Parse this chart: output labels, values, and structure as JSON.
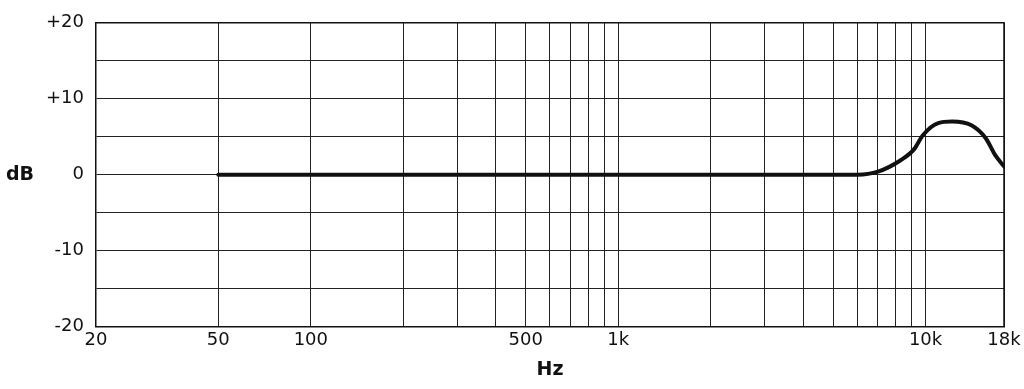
{
  "chart_data": {
    "type": "line",
    "xlabel": "Hz",
    "ylabel": "dB",
    "log": "x",
    "grid": true,
    "legend": false,
    "marker": "none",
    "line_style": "solid",
    "xlim": [
      20,
      18000
    ],
    "ylim": [
      -20,
      20
    ],
    "xticks": [
      20,
      50,
      100,
      {
        "value": 200,
        "label": null
      },
      {
        "value": 300,
        "label": null
      },
      {
        "value": 400,
        "label": null
      },
      500,
      {
        "value": 600,
        "label": null
      },
      {
        "value": 700,
        "label": null
      },
      {
        "value": 800,
        "label": null
      },
      {
        "value": 900,
        "label": null
      },
      {
        "value": 1000,
        "label": "1k"
      },
      {
        "value": 2000,
        "label": null
      },
      {
        "value": 3000,
        "label": null
      },
      {
        "value": 4000,
        "label": null
      },
      {
        "value": 5000,
        "label": null
      },
      {
        "value": 6000,
        "label": null
      },
      {
        "value": 7000,
        "label": null
      },
      {
        "value": 8000,
        "label": null
      },
      {
        "value": 9000,
        "label": null
      },
      {
        "value": 10000,
        "label": "10k"
      },
      {
        "value": 18000,
        "label": "18k"
      }
    ],
    "yticks": [
      {
        "value": -20,
        "label": "-20"
      },
      {
        "value": -15,
        "label": null
      },
      {
        "value": -10,
        "label": "-10"
      },
      {
        "value": -5,
        "label": null
      },
      0,
      {
        "value": 5,
        "label": null
      },
      {
        "value": 10,
        "label": "+10"
      },
      {
        "value": 15,
        "label": null
      },
      {
        "value": 20,
        "label": "+20"
      }
    ],
    "series": [
      {
        "color": "#111111",
        "x": [
          50,
          1000,
          6000,
          7000,
          8300,
          9200,
          9800,
          11000,
          12200,
          14100,
          15700,
          16900,
          18000
        ],
        "values": [
          0,
          0,
          0,
          0.4,
          1.9,
          3.4,
          5.2,
          6.8,
          7.0,
          6.5,
          4.8,
          2.5,
          1.1
        ]
      }
    ]
  }
}
